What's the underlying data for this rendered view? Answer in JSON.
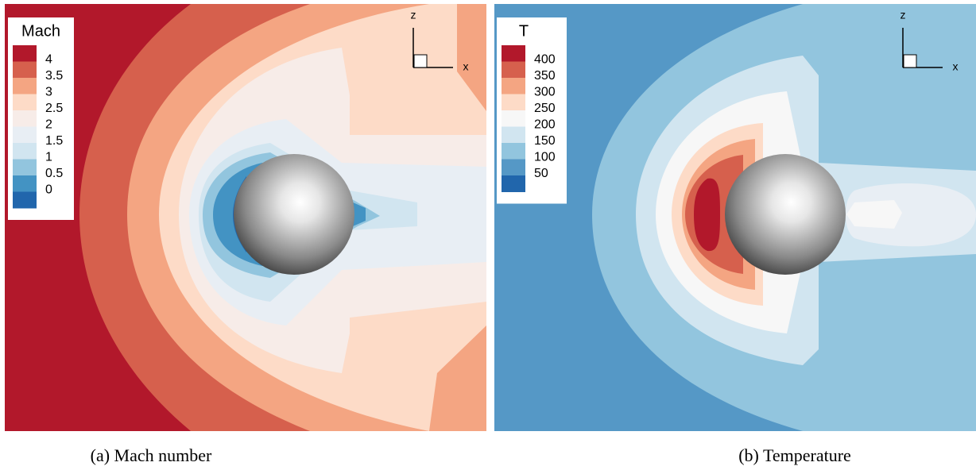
{
  "panels": [
    {
      "legend": {
        "title": "Mach",
        "labels": [
          "4",
          "3.5",
          "3",
          "2.5",
          "2",
          "1.5",
          "1",
          "0.5",
          "0"
        ],
        "colors": [
          "#b2182b",
          "#d6604d",
          "#f4a582",
          "#fddbc7",
          "#f7ece8",
          "#e8eef4",
          "#d1e5f0",
          "#92c5de",
          "#4393c3",
          "#2166ac"
        ]
      },
      "axes": {
        "x": "x",
        "z": "z"
      },
      "caption": "(a) Mach number"
    },
    {
      "legend": {
        "title": "T",
        "labels": [
          "400",
          "350",
          "300",
          "250",
          "200",
          "150",
          "100",
          "50"
        ],
        "colors": [
          "#b2182b",
          "#d6604d",
          "#f4a582",
          "#fddbc7",
          "#f7f7f7",
          "#d1e5f0",
          "#92c5de",
          "#5598c6",
          "#2166ac"
        ]
      },
      "axes": {
        "x": "x",
        "z": "z"
      },
      "caption": "(b) Temperature"
    }
  ]
}
